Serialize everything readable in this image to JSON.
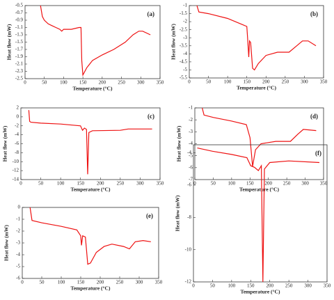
{
  "chart_data": [
    {
      "type": "line",
      "title": "(a)",
      "xlabel": "Temperature (°C)",
      "ylabel": "Heat flow (mW)",
      "color": "#ee1111",
      "x": [
        40,
        45,
        50,
        60,
        70,
        80,
        90,
        95,
        100,
        120,
        140,
        145,
        147,
        150,
        160,
        175,
        200,
        230,
        260,
        280,
        295,
        305,
        325
      ],
      "values": [
        -0.5,
        -0.8,
        -0.9,
        -1.0,
        -1.05,
        -1.1,
        -1.15,
        -1.2,
        -1.15,
        -1.15,
        -1.1,
        -1.1,
        -2.0,
        -2.4,
        -2.2,
        -2.0,
        -1.85,
        -1.7,
        -1.5,
        -1.3,
        -1.2,
        -1.2,
        -1.3
      ],
      "xlim": [
        0,
        350
      ],
      "xticks": [
        0,
        50,
        100,
        150,
        200,
        250,
        300,
        350
      ],
      "ylim": [
        -2.5,
        -0.5
      ],
      "yticks": [
        -0.5,
        -0.7,
        -0.9,
        -1.1,
        -1.3,
        -1.5,
        -1.7,
        -1.9,
        -2.1,
        -2.3,
        -2.5
      ]
    },
    {
      "type": "line",
      "title": "(b)",
      "xlabel": "Temperature (°C)",
      "ylabel": "Heat flow (mW)",
      "color": "#ee1111",
      "x": [
        20,
        25,
        50,
        100,
        140,
        150,
        152,
        155,
        157,
        160,
        165,
        170,
        180,
        200,
        230,
        260,
        280,
        295,
        310,
        330
      ],
      "values": [
        -1.0,
        -1.4,
        -1.5,
        -1.8,
        -2.2,
        -2.3,
        -3.0,
        -4.2,
        -3.2,
        -3.3,
        -4.9,
        -5.0,
        -4.6,
        -4.1,
        -3.9,
        -3.9,
        -3.5,
        -3.2,
        -3.2,
        -3.5
      ],
      "xlim": [
        0,
        350
      ],
      "xticks": [
        0,
        50,
        100,
        150,
        200,
        250,
        300,
        350
      ],
      "ylim": [
        -5.5,
        -1
      ],
      "yticks": [
        -1,
        -1.5,
        -2,
        -2.5,
        -3,
        -3.5,
        -4,
        -4.5,
        -5,
        -5.5
      ]
    },
    {
      "type": "line",
      "title": "(c)",
      "xlabel": "Temperature (°C)",
      "ylabel": "Heat flow (mW)",
      "color": "#ee1111",
      "x": [
        20,
        22,
        25,
        50,
        100,
        150,
        155,
        160,
        165,
        168,
        171,
        180,
        250,
        270,
        330
      ],
      "values": [
        1.5,
        -1.0,
        -1.2,
        -1.4,
        -1.6,
        -2.0,
        -3.0,
        -2.5,
        -2.8,
        -12.8,
        -3.5,
        -3.1,
        -3.0,
        -2.7,
        -2.7
      ],
      "xlim": [
        0,
        350
      ],
      "xticks": [
        0,
        50,
        100,
        150,
        200,
        250,
        300,
        350
      ],
      "ylim": [
        -14,
        2
      ],
      "yticks": [
        2,
        0,
        -2,
        -4,
        -6,
        -8,
        -10,
        -12,
        -14
      ]
    },
    {
      "type": "line",
      "title": "(d)",
      "xlabel": "Temperature (°C)",
      "ylabel": "Heat flow (mW)",
      "color": "#ee1111",
      "x": [
        20,
        25,
        50,
        100,
        140,
        150,
        157,
        165,
        180,
        220,
        260,
        280,
        295,
        330
      ],
      "values": [
        -1.0,
        -1.6,
        -1.8,
        -2.1,
        -2.4,
        -3.5,
        -5.9,
        -4.5,
        -4.0,
        -3.8,
        -3.8,
        -3.2,
        -2.8,
        -2.9
      ],
      "xlim": [
        0,
        350
      ],
      "xticks": [
        0,
        50,
        100,
        150,
        200,
        250,
        300,
        350
      ],
      "ylim": [
        -7,
        -1
      ],
      "yticks": [
        -1,
        -2,
        -3,
        -4,
        -5,
        -6,
        -7
      ]
    },
    {
      "type": "line",
      "title": "(e)",
      "xlabel": "Temperature (°C)",
      "ylabel": "Heat flow (mW)",
      "color": "#ee1111",
      "x": [
        20,
        25,
        50,
        100,
        140,
        150,
        152,
        155,
        162,
        168,
        175,
        190,
        210,
        230,
        260,
        275,
        290,
        310,
        330
      ],
      "values": [
        0,
        -1.1,
        -1.3,
        -1.6,
        -1.9,
        -2.4,
        -3.2,
        -2.4,
        -2.5,
        -4.8,
        -4.7,
        -3.8,
        -3.3,
        -3.1,
        -3.3,
        -3.5,
        -2.9,
        -2.8,
        -2.9
      ],
      "xlim": [
        0,
        350
      ],
      "xticks": [
        0,
        50,
        100,
        150,
        200,
        250,
        300,
        350
      ],
      "ylim": [
        -6,
        0
      ],
      "yticks": [
        0,
        -1,
        -2,
        -3,
        -4,
        -5,
        -6
      ]
    },
    {
      "type": "line",
      "title": "(f)",
      "xlabel": "Temperature (°C)",
      "ylabel": "Heat flow (mW)",
      "color": "#ee1111",
      "x": [
        10,
        50,
        100,
        140,
        150,
        160,
        170,
        178,
        182,
        186,
        200,
        250,
        330
      ],
      "values": [
        -3.7,
        -3.9,
        -4.1,
        -4.3,
        -4.8,
        -4.9,
        -5.1,
        -4.8,
        -12,
        -5.0,
        -4.6,
        -4.5,
        -4.6
      ],
      "xlim": [
        0,
        350
      ],
      "xticks": [
        0,
        50,
        100,
        150,
        200,
        250,
        300,
        350
      ],
      "ylim": [
        -12,
        -3.5
      ],
      "yticks": [
        -4,
        -6,
        -8,
        -10,
        -12
      ]
    }
  ]
}
